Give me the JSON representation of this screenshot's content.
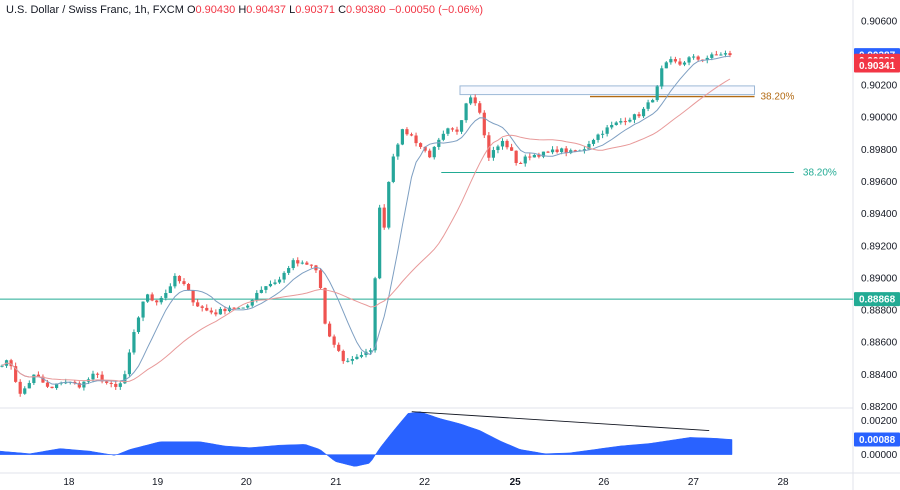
{
  "header": {
    "symbol": "U.S. Dollar / Swiss Franc, 1h, FXCM",
    "o_label": "O",
    "o_value": "0.90430",
    "h_label": "H",
    "h_value": "0.90437",
    "l_label": "L",
    "l_value": "0.90371",
    "c_label": "C",
    "c_value": "0.90380",
    "change": "−0.00050 (−0.06%)"
  },
  "colors": {
    "up": "#26a69a",
    "down": "#ef5350",
    "ma_fast": "#7e9fc2",
    "ma_slow": "#e89a9a",
    "osc": "#2962ff",
    "hline": "#22ab94",
    "fib_gold": "#b36b14",
    "fib_teal": "#22ab94",
    "badge_blue": "#2962ff",
    "badge_red": "#f23645",
    "badge_teal": "#22ab94"
  },
  "chart_data": {
    "type": "candlestick",
    "price_axis": {
      "ylim": [
        0.8819,
        0.9068
      ],
      "ticks": [
        "0.90600",
        "0.90400",
        "0.90200",
        "0.90000",
        "0.89800",
        "0.89600",
        "0.89400",
        "0.89200",
        "0.89000",
        "0.88800",
        "0.88600",
        "0.88400",
        "0.88200"
      ]
    },
    "osc_axis": {
      "ylim": [
        -0.0009,
        0.0026
      ],
      "ticks": [
        "0.00200",
        "0.00000"
      ]
    },
    "x_labels": [
      {
        "label": "18",
        "bar": 70
      },
      {
        "label": "19",
        "bar": 160
      },
      {
        "label": "20",
        "bar": 250
      },
      {
        "label": "21",
        "bar": 341
      },
      {
        "label": "22",
        "bar": 431
      },
      {
        "label": "25",
        "bar": 523,
        "bold": true
      },
      {
        "label": "26",
        "bar": 613
      },
      {
        "label": "27",
        "bar": 704
      },
      {
        "label": "28",
        "bar": 795
      }
    ],
    "keypoints": [
      [
        0,
        0.88465
      ],
      [
        10,
        0.8848
      ],
      [
        20,
        0.8827
      ],
      [
        35,
        0.884
      ],
      [
        50,
        0.883
      ],
      [
        62,
        0.8836
      ],
      [
        80,
        0.8833
      ],
      [
        95,
        0.884
      ],
      [
        110,
        0.8833
      ],
      [
        118,
        0.8831
      ],
      [
        125,
        0.884
      ],
      [
        135,
        0.8868
      ],
      [
        145,
        0.889
      ],
      [
        155,
        0.8885
      ],
      [
        165,
        0.889
      ],
      [
        175,
        0.89
      ],
      [
        185,
        0.8895
      ],
      [
        195,
        0.8884
      ],
      [
        205,
        0.888
      ],
      [
        215,
        0.8878
      ],
      [
        230,
        0.8882
      ],
      [
        245,
        0.888
      ],
      [
        255,
        0.889
      ],
      [
        265,
        0.8895
      ],
      [
        280,
        0.8899
      ],
      [
        292,
        0.891
      ],
      [
        305,
        0.8908
      ],
      [
        315,
        0.8907
      ],
      [
        322,
        0.889
      ],
      [
        326,
        0.8865
      ],
      [
        335,
        0.8858
      ],
      [
        345,
        0.8847
      ],
      [
        355,
        0.8851
      ],
      [
        365,
        0.8853
      ],
      [
        372,
        0.8854
      ],
      [
        375,
        0.89
      ],
      [
        380,
        0.8946
      ],
      [
        385,
        0.893
      ],
      [
        390,
        0.897
      ],
      [
        395,
        0.898
      ],
      [
        403,
        0.8992
      ],
      [
        412,
        0.8988
      ],
      [
        420,
        0.8982
      ],
      [
        430,
        0.8976
      ],
      [
        440,
        0.8986
      ],
      [
        448,
        0.8992
      ],
      [
        458,
        0.899
      ],
      [
        466,
        0.901
      ],
      [
        472,
        0.9014
      ],
      [
        480,
        0.9004
      ],
      [
        488,
        0.8975
      ],
      [
        495,
        0.898
      ],
      [
        503,
        0.8985
      ],
      [
        510,
        0.898
      ],
      [
        518,
        0.897
      ],
      [
        528,
        0.8976
      ],
      [
        540,
        0.8977
      ],
      [
        550,
        0.8978
      ],
      [
        558,
        0.898
      ],
      [
        570,
        0.8978
      ],
      [
        582,
        0.8979
      ],
      [
        590,
        0.8985
      ],
      [
        600,
        0.899
      ],
      [
        610,
        0.8994
      ],
      [
        622,
        0.8998
      ],
      [
        632,
        0.9
      ],
      [
        640,
        0.9002
      ],
      [
        648,
        0.9008
      ],
      [
        656,
        0.9015
      ],
      [
        662,
        0.903
      ],
      [
        670,
        0.9035
      ],
      [
        680,
        0.9033
      ],
      [
        690,
        0.9037
      ],
      [
        700,
        0.9036
      ],
      [
        712,
        0.9038
      ],
      [
        724,
        0.904
      ],
      [
        730,
        0.9038
      ]
    ],
    "oscillator": [
      [
        0,
        0.0002
      ],
      [
        30,
        5e-05
      ],
      [
        60,
        0.00035
      ],
      [
        90,
        0.0002
      ],
      [
        115,
        -5e-05
      ],
      [
        130,
        0.0003
      ],
      [
        160,
        0.00075
      ],
      [
        200,
        0.00075
      ],
      [
        225,
        0.0005
      ],
      [
        250,
        0.0004
      ],
      [
        280,
        0.00055
      ],
      [
        305,
        0.0006
      ],
      [
        320,
        0.0003
      ],
      [
        335,
        -0.0004
      ],
      [
        355,
        -0.0007
      ],
      [
        370,
        -0.0005
      ],
      [
        380,
        0.0004
      ],
      [
        395,
        0.0015
      ],
      [
        408,
        0.0024
      ],
      [
        420,
        0.0025
      ],
      [
        440,
        0.0021
      ],
      [
        460,
        0.0018
      ],
      [
        480,
        0.0014
      ],
      [
        500,
        0.0008
      ],
      [
        520,
        0.0003
      ],
      [
        545,
        5e-05
      ],
      [
        570,
        0.0001
      ],
      [
        595,
        0.0003
      ],
      [
        620,
        0.0005
      ],
      [
        650,
        0.00065
      ],
      [
        690,
        0.001
      ],
      [
        715,
        0.00095
      ],
      [
        732,
        0.00088
      ]
    ],
    "horizontal_line": 0.88868,
    "fib_top": {
      "start_bar": 467,
      "end_bar": 766,
      "level": 0.90141,
      "box_top": 0.90195,
      "label": "38.20%"
    },
    "fib_bottom": {
      "start_bar": 448,
      "end_bar": 806,
      "level": 0.89656,
      "label": "38.20%"
    },
    "osc_trendline": [
      [
        418,
        0.0025
      ],
      [
        720,
        0.0014
      ]
    ],
    "price_badges": [
      {
        "value": "0.90387",
        "price": 0.90387,
        "color": "badge_blue"
      },
      {
        "value": "0.90380",
        "price": 0.90352,
        "color": "badge_red"
      },
      {
        "value": "0.90341",
        "price": 0.90322,
        "color": "badge_red"
      },
      {
        "value": "0.88868",
        "price": 0.88868,
        "color": "badge_teal"
      }
    ],
    "osc_badge": {
      "value": "0.00088",
      "level": 0.00088
    }
  }
}
